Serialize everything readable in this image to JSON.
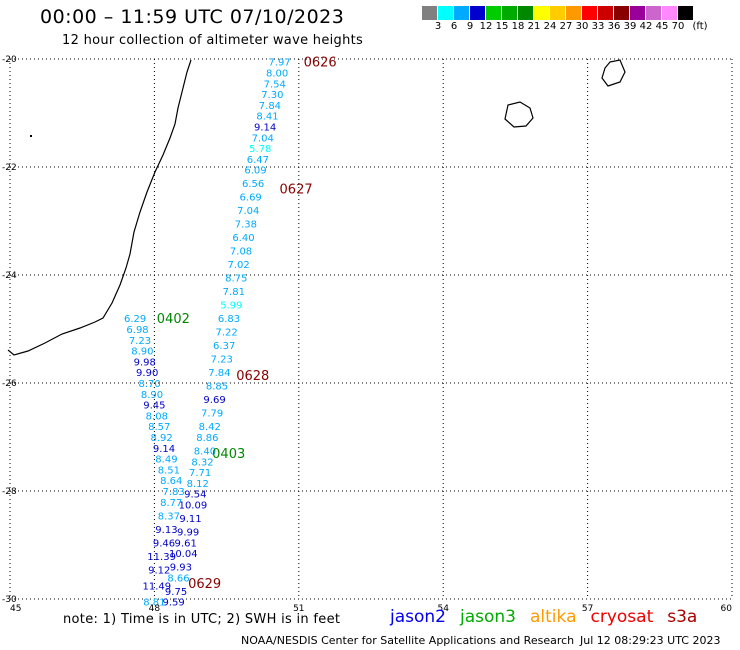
{
  "header": {
    "title": "00:00 – 11:59 UTC 07/10/2023",
    "subtitle": "12 hour collection of altimeter wave heights"
  },
  "colorbar": {
    "colors": [
      "#808080",
      "#00ffff",
      "#00aaff",
      "#0000cc",
      "#00cc00",
      "#00aa00",
      "#008800",
      "#ffff00",
      "#ffcc00",
      "#ff9900",
      "#ff0000",
      "#cc0000",
      "#880000",
      "#990099",
      "#cc66cc",
      "#ff88ff",
      "#000000"
    ],
    "tick_labels": [
      "3",
      "6",
      "9",
      "12",
      "15",
      "18",
      "21",
      "24",
      "27",
      "30",
      "33",
      "36",
      "39",
      "42",
      "45",
      "70",
      "(ft)"
    ]
  },
  "map": {
    "lon_range": [
      45,
      60
    ],
    "lat_range": [
      -30,
      -20
    ],
    "lon_labels": [
      "45",
      "48",
      "51",
      "54",
      "57",
      "60"
    ],
    "lat_labels": [
      "-20",
      "-22",
      "-24",
      "-26",
      "-28",
      "-30"
    ],
    "pass_labels": [
      {
        "text": "0626",
        "lon": 51.1,
        "lat": -20.05,
        "color": "#880000"
      },
      {
        "text": "0627",
        "lon": 50.6,
        "lat": -22.4,
        "color": "#880000"
      },
      {
        "text": "0402",
        "lon": 48.05,
        "lat": -24.8,
        "color": "#008800"
      },
      {
        "text": "0628",
        "lon": 49.7,
        "lat": -25.85,
        "color": "#880000"
      },
      {
        "text": "0403",
        "lon": 49.2,
        "lat": -27.3,
        "color": "#008800"
      },
      {
        "text": "0629",
        "lon": 48.7,
        "lat": -29.7,
        "color": "#880000"
      }
    ],
    "tracks": [
      {
        "name": "A",
        "points": [
          {
            "lon": 50.6,
            "lat": -20.05,
            "swh": "7.97"
          },
          {
            "lon": 50.55,
            "lat": -20.25,
            "swh": "8.00"
          },
          {
            "lon": 50.5,
            "lat": -20.45,
            "swh": "7.54"
          },
          {
            "lon": 50.45,
            "lat": -20.65,
            "swh": "7.30"
          },
          {
            "lon": 50.4,
            "lat": -20.85,
            "swh": "7.84"
          },
          {
            "lon": 50.35,
            "lat": -21.05,
            "swh": "8.41"
          },
          {
            "lon": 50.3,
            "lat": -21.25,
            "swh": "9.14"
          },
          {
            "lon": 50.25,
            "lat": -21.45,
            "swh": "7.04"
          },
          {
            "lon": 50.2,
            "lat": -21.65,
            "swh": "5.78"
          },
          {
            "lon": 50.15,
            "lat": -21.85,
            "swh": "6.47"
          },
          {
            "lon": 50.1,
            "lat": -22.05,
            "swh": "6.09"
          },
          {
            "lon": 50.05,
            "lat": -22.3,
            "swh": "6.56"
          },
          {
            "lon": 50.0,
            "lat": -22.55,
            "swh": "6.69"
          },
          {
            "lon": 49.95,
            "lat": -22.8,
            "swh": "7.04"
          },
          {
            "lon": 49.9,
            "lat": -23.05,
            "swh": "7.38"
          },
          {
            "lon": 49.85,
            "lat": -23.3,
            "swh": "6.40"
          },
          {
            "lon": 49.8,
            "lat": -23.55,
            "swh": "7.08"
          },
          {
            "lon": 49.75,
            "lat": -23.8,
            "swh": "7.02"
          },
          {
            "lon": 49.7,
            "lat": -24.05,
            "swh": "8.75"
          },
          {
            "lon": 49.65,
            "lat": -24.3,
            "swh": "7.81"
          },
          {
            "lon": 49.6,
            "lat": -24.55,
            "swh": "5.99"
          },
          {
            "lon": 49.55,
            "lat": -24.8,
            "swh": "6.83"
          },
          {
            "lon": 49.5,
            "lat": -25.05,
            "swh": "7.22"
          },
          {
            "lon": 49.45,
            "lat": -25.3,
            "swh": "6.37"
          },
          {
            "lon": 49.4,
            "lat": -25.55,
            "swh": "7.23"
          },
          {
            "lon": 49.35,
            "lat": -25.8,
            "swh": "7.84"
          },
          {
            "lon": 49.3,
            "lat": -26.05,
            "swh": "8.85"
          },
          {
            "lon": 49.25,
            "lat": -26.3,
            "swh": "9.69"
          },
          {
            "lon": 49.2,
            "lat": -26.55,
            "swh": "7.79"
          },
          {
            "lon": 49.15,
            "lat": -26.8,
            "swh": "8.42"
          },
          {
            "lon": 49.1,
            "lat": -27.0,
            "swh": "8.86"
          },
          {
            "lon": 49.05,
            "lat": -27.25,
            "swh": "8.40"
          },
          {
            "lon": 49.0,
            "lat": -27.45,
            "swh": "8.32"
          },
          {
            "lon": 48.95,
            "lat": -27.65,
            "swh": "7.71"
          },
          {
            "lon": 48.9,
            "lat": -27.85,
            "swh": "8.12"
          },
          {
            "lon": 48.85,
            "lat": -28.05,
            "swh": "9.54"
          },
          {
            "lon": 48.8,
            "lat": -28.25,
            "swh": "10.09"
          },
          {
            "lon": 48.75,
            "lat": -28.5,
            "swh": "9.11"
          },
          {
            "lon": 48.7,
            "lat": -28.75,
            "swh": "9.99"
          },
          {
            "lon": 48.65,
            "lat": -28.95,
            "swh": "9.61"
          },
          {
            "lon": 48.6,
            "lat": -29.15,
            "swh": "10.04"
          },
          {
            "lon": 48.55,
            "lat": -29.4,
            "swh": "9.93"
          },
          {
            "lon": 48.5,
            "lat": -29.6,
            "swh": "8.66"
          },
          {
            "lon": 48.45,
            "lat": -29.85,
            "swh": "9.75"
          },
          {
            "lon": 48.4,
            "lat": -30.05,
            "swh": "9.59"
          }
        ]
      },
      {
        "name": "B",
        "points": [
          {
            "lon": 47.6,
            "lat": -24.8,
            "swh": "6.29"
          },
          {
            "lon": 47.65,
            "lat": -25.0,
            "swh": "6.98"
          },
          {
            "lon": 47.7,
            "lat": -25.2,
            "swh": "7.23"
          },
          {
            "lon": 47.75,
            "lat": -25.4,
            "swh": "8.90"
          },
          {
            "lon": 47.8,
            "lat": -25.6,
            "swh": "9.98"
          },
          {
            "lon": 47.85,
            "lat": -25.8,
            "swh": "9.90"
          },
          {
            "lon": 47.9,
            "lat": -26.0,
            "swh": "8.70"
          },
          {
            "lon": 47.95,
            "lat": -26.2,
            "swh": "8.90"
          },
          {
            "lon": 48.0,
            "lat": -26.4,
            "swh": "9.45"
          },
          {
            "lon": 48.05,
            "lat": -26.6,
            "swh": "8.08"
          },
          {
            "lon": 48.1,
            "lat": -26.8,
            "swh": "8.57"
          },
          {
            "lon": 48.15,
            "lat": -27.0,
            "swh": "8.92"
          },
          {
            "lon": 48.2,
            "lat": -27.2,
            "swh": "9.14"
          },
          {
            "lon": 48.25,
            "lat": -27.4,
            "swh": "8.49"
          },
          {
            "lon": 48.3,
            "lat": -27.6,
            "swh": "8.51"
          },
          {
            "lon": 48.35,
            "lat": -27.8,
            "swh": "8.64"
          },
          {
            "lon": 48.4,
            "lat": -28.0,
            "swh": "7.83"
          },
          {
            "lon": 48.35,
            "lat": -28.2,
            "swh": "8.77"
          },
          {
            "lon": 48.3,
            "lat": -28.45,
            "swh": "8.37"
          },
          {
            "lon": 48.25,
            "lat": -28.7,
            "swh": "9.13"
          },
          {
            "lon": 48.2,
            "lat": -28.95,
            "swh": "9.46"
          },
          {
            "lon": 48.15,
            "lat": -29.2,
            "swh": "11.39"
          },
          {
            "lon": 48.1,
            "lat": -29.45,
            "swh": "9.12"
          },
          {
            "lon": 48.05,
            "lat": -29.75,
            "swh": "11.49"
          },
          {
            "lon": 48.0,
            "lat": -30.05,
            "swh": "8.81"
          }
        ]
      }
    ]
  },
  "footer": {
    "note": "note: 1) Time is in UTC; 2) SWH is in feet",
    "missions": [
      {
        "name": "jason2",
        "color": "#0000ee"
      },
      {
        "name": "jason3",
        "color": "#00aa00"
      },
      {
        "name": "altika",
        "color": "#ff9900"
      },
      {
        "name": "cryosat",
        "color": "#ee0000"
      },
      {
        "name": "s3a",
        "color": "#aa0000"
      }
    ],
    "credit": "NOAA/NESDIS Center for Satellite Applications and Research",
    "timestamp": "Jul 12 08:29:23 UTC 2023"
  }
}
